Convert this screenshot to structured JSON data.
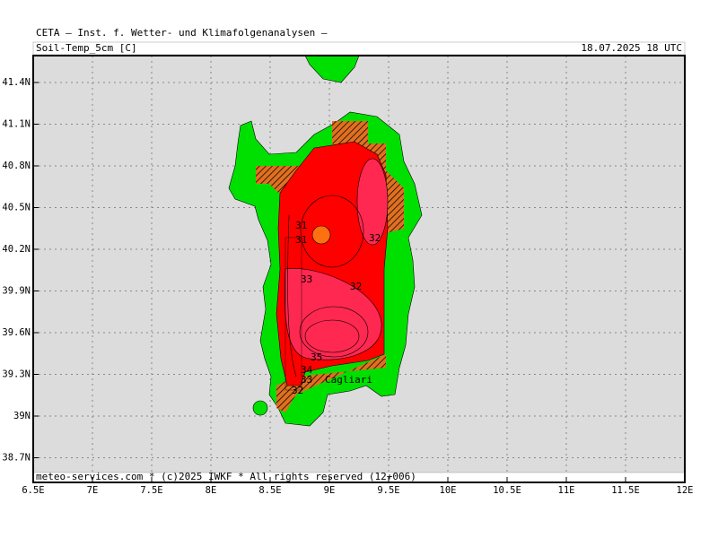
{
  "header": {
    "title": "CETA — Inst. f. Wetter- und Klimafolgenanalysen —",
    "parameter": "Soil-Temp_5cm [C]",
    "valid_time": "18.07.2025 18 UTC"
  },
  "map": {
    "lat_labels": [
      "41.4N",
      "41.1N",
      "40.8N",
      "40.5N",
      "40.2N",
      "39.9N",
      "39.6N",
      "39.3N",
      "39N",
      "38.7N"
    ],
    "lon_labels": [
      "6.5E",
      "7E",
      "7.5E",
      "8E",
      "8.5E",
      "9E",
      "9.5E",
      "10E",
      "10.5E",
      "11E",
      "11.5E",
      "12E"
    ],
    "contour_labels": [
      "31",
      "31",
      "32",
      "33",
      "32",
      "35",
      "34",
      "33",
      "32"
    ],
    "place": "Cagliari"
  },
  "footer": "meteo-services.com * (c)2025 IWKF * All rights reserved (12+006)"
}
